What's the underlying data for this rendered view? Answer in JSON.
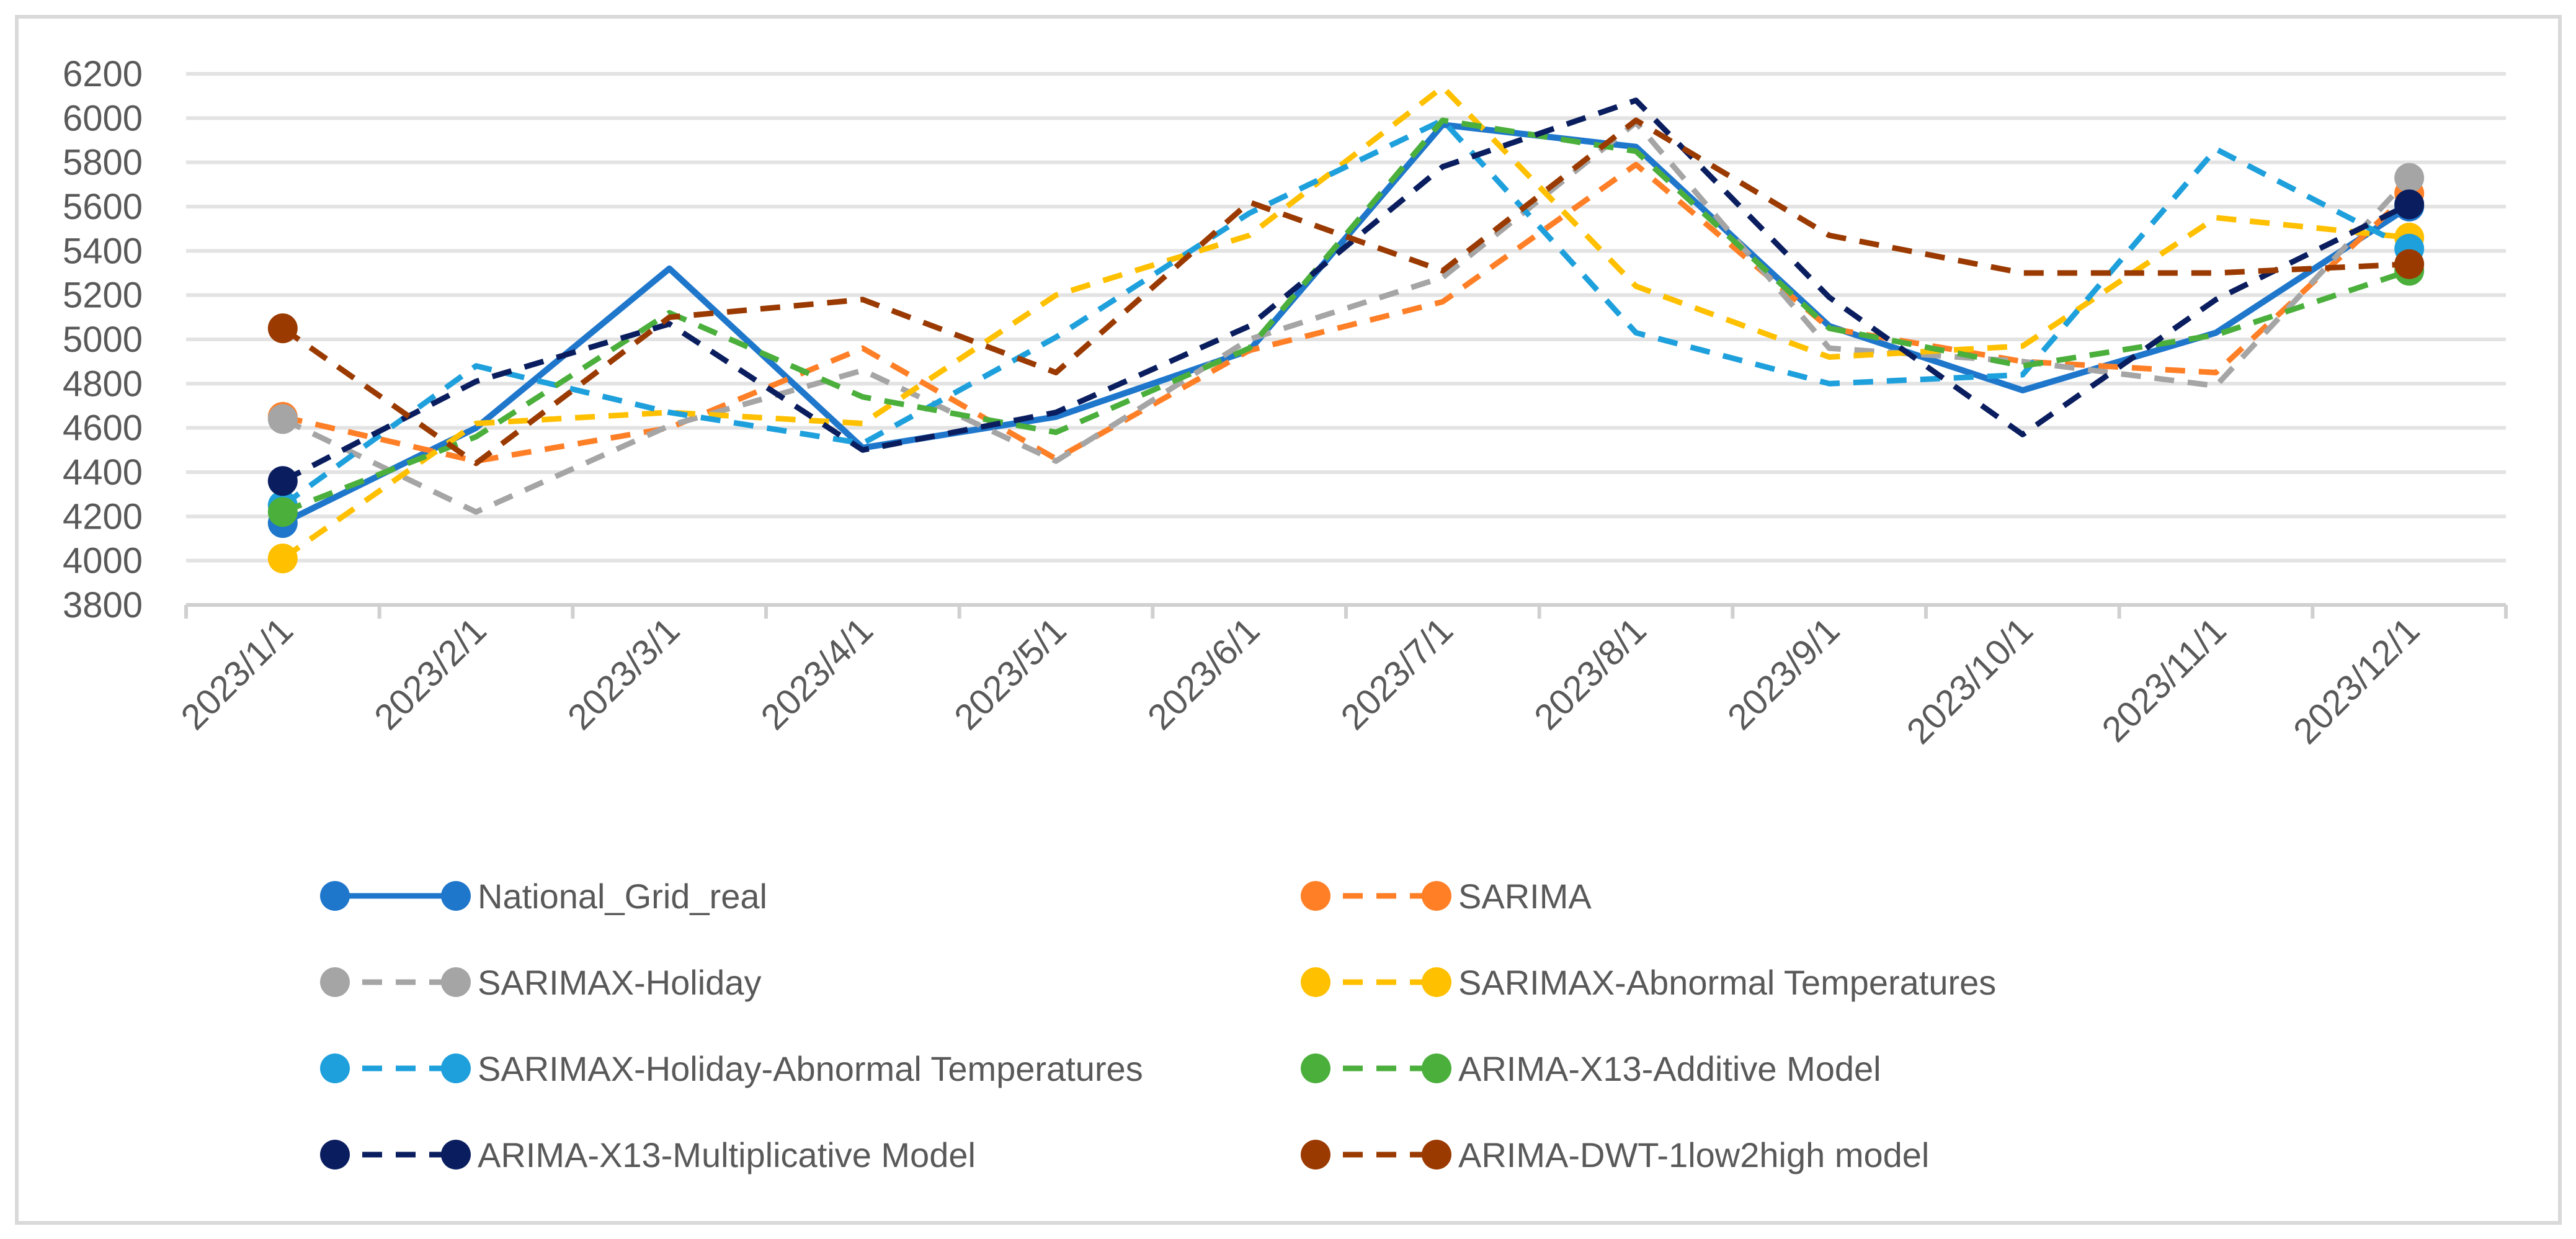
{
  "chart_data": {
    "type": "line",
    "title": "",
    "xlabel": "",
    "ylabel": "",
    "ylim": [
      3800,
      6200
    ],
    "yticks": [
      3800,
      4000,
      4200,
      4400,
      4600,
      4800,
      5000,
      5200,
      5400,
      5600,
      5800,
      6000,
      6200
    ],
    "grid": true,
    "legend_position": "bottom",
    "categories": [
      "2023/1/1",
      "2023/2/1",
      "2023/3/1",
      "2023/4/1",
      "2023/5/1",
      "2023/6/1",
      "2023/7/1",
      "2023/8/1",
      "2023/9/1",
      "2023/10/1",
      "2023/11/1",
      "2023/12/1"
    ],
    "series": [
      {
        "name": "National_Grid_real",
        "color": "#1F77CC",
        "dashed": false,
        "values": [
          4170,
          4600,
          5320,
          4510,
          4650,
          4950,
          5970,
          5870,
          5060,
          4770,
          5030,
          5600
        ]
      },
      {
        "name": "SARIMA",
        "color": "#FF7F27",
        "dashed": true,
        "values": [
          4650,
          4450,
          4600,
          4960,
          4460,
          4950,
          5170,
          5790,
          5050,
          4900,
          4850,
          5660
        ]
      },
      {
        "name": "SARIMAX-Holiday",
        "color": "#A5A5A5",
        "dashed": true,
        "values": [
          4640,
          4220,
          4610,
          4860,
          4450,
          5000,
          5280,
          5980,
          4960,
          4900,
          4790,
          5730
        ]
      },
      {
        "name": "SARIMAX-Abnormal Temperatures",
        "color": "#FFC000",
        "dashed": true,
        "values": [
          4010,
          4620,
          4670,
          4620,
          5200,
          5470,
          6140,
          5240,
          4920,
          4970,
          5550,
          5460
        ]
      },
      {
        "name": "SARIMAX-Holiday-Abnormal Temperatures",
        "color": "#1EA0DC",
        "dashed": true,
        "values": [
          4250,
          4880,
          4670,
          4530,
          5010,
          5570,
          5990,
          5030,
          4800,
          4840,
          5860,
          5410
        ]
      },
      {
        "name": "ARIMA-X13-Additive Model",
        "color": "#4BAF3C",
        "dashed": true,
        "values": [
          4220,
          4560,
          5120,
          4740,
          4580,
          4960,
          5990,
          5850,
          5050,
          4880,
          5020,
          5310
        ]
      },
      {
        "name": "ARIMA-X13-Multiplicative Model",
        "color": "#0A1E5F",
        "dashed": true,
        "values": [
          4360,
          4810,
          5070,
          4500,
          4670,
          5060,
          5780,
          6080,
          5190,
          4570,
          5180,
          5610
        ]
      },
      {
        "name": "ARIMA-DWT-1low2high model",
        "color": "#9A3A00",
        "dashed": true,
        "values": [
          5050,
          4440,
          5100,
          5180,
          4850,
          5620,
          5310,
          5990,
          5470,
          5300,
          5300,
          5340
        ]
      }
    ]
  }
}
